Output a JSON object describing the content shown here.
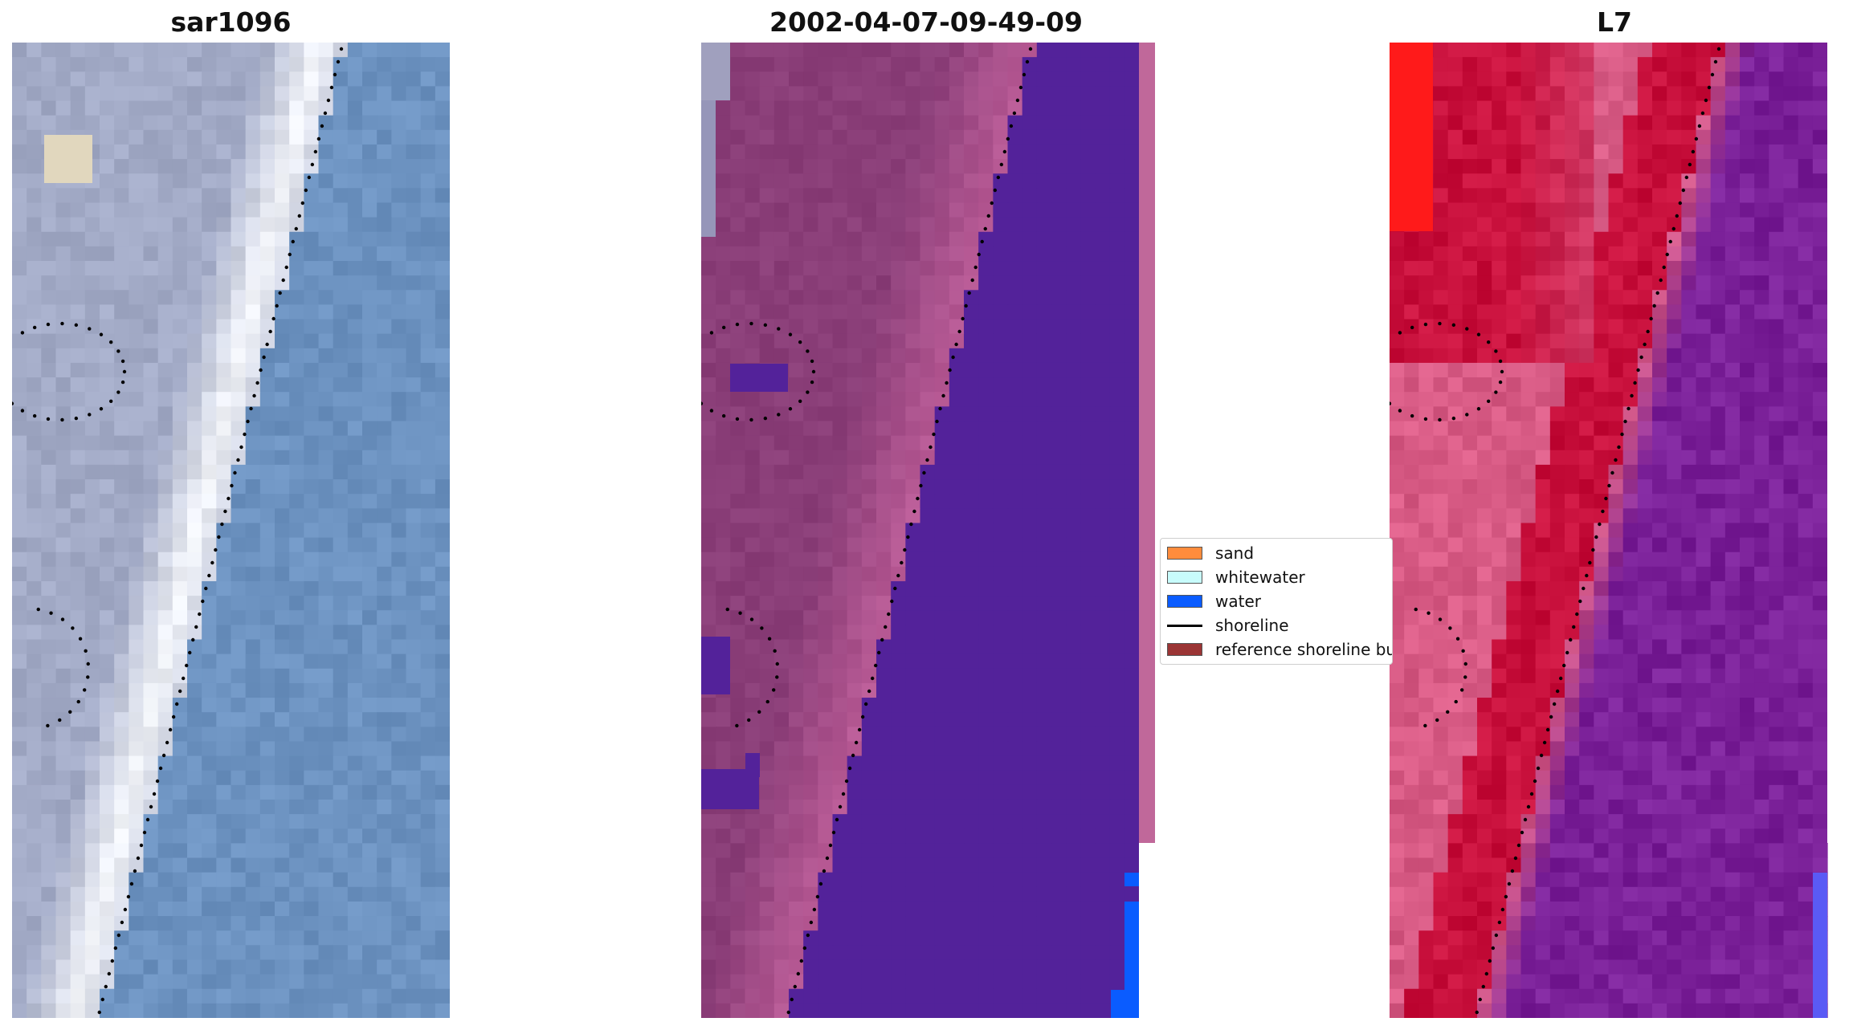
{
  "panels": [
    {
      "title": "sar1096"
    },
    {
      "title": "2002-04-07-09-49-09"
    },
    {
      "title": "L7"
    }
  ],
  "legend": {
    "items": [
      {
        "label": "sand",
        "kind": "patch",
        "color": "#ff8c3c"
      },
      {
        "label": "whitewater",
        "kind": "patch",
        "color": "#c8fcfc"
      },
      {
        "label": "water",
        "kind": "patch",
        "color": "#0a5cff"
      },
      {
        "label": "shoreline",
        "kind": "line",
        "color": "#000000"
      },
      {
        "label": "reference shoreline buffer",
        "kind": "patch",
        "color": "#9b3535"
      }
    ]
  },
  "colors": {
    "sar_water": "#6c92c0",
    "sar_land": "#a2aac6",
    "sar_bright": "#f4f6fa",
    "class_land": "#8a3e78",
    "class_sand_pink": "#b85a95",
    "class_water": "#53229a",
    "class_strip": "#c0689a",
    "class_blue": "#0a5cff",
    "l7_red": "#c8103c",
    "l7_bright_red": "#ff1a1a",
    "l7_pink": "#d85b85",
    "l7_purple": "#7a2098",
    "l7_blue": "#5a5af5"
  }
}
